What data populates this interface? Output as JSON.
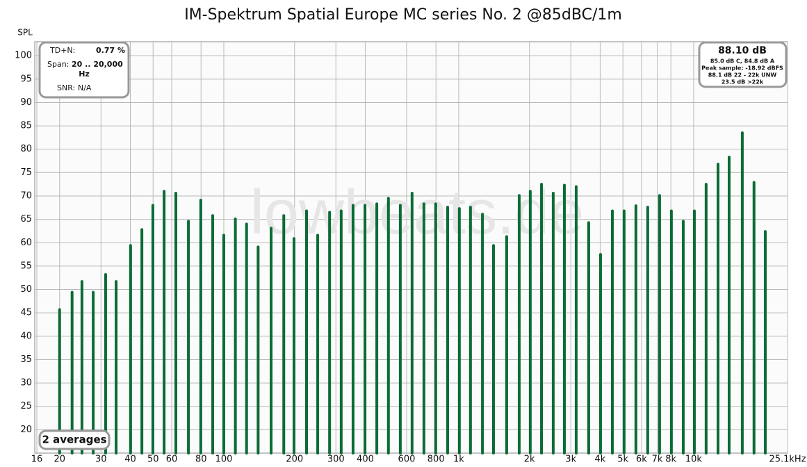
{
  "chart_data": {
    "type": "spectrum",
    "title": "IM-Spektrum Spatial Europe MC series No. 2 @85dBC/1m",
    "y_label": "SPL",
    "watermark": "lowbeats.de",
    "averages": "2 averages",
    "info_left": {
      "tdn_label": "TD+N:",
      "tdn_value": "0.77 %",
      "span_label": "Span:",
      "span_value": "20 .. 20,000",
      "span_unit": "Hz",
      "snr_label": "SNR:",
      "snr_value": "N/A"
    },
    "info_right": {
      "level": "88.10 dB",
      "lines": [
        "85.0 dB C, 84.8 dB A",
        "Peak sample: -18.92 dBFS",
        "88.1 dB 22 - 22k UNW",
        "23.5 dB >22k"
      ]
    },
    "log_x": true,
    "grid": true,
    "color": "#0b6b36",
    "xlim": [
      16,
      25100
    ],
    "ylim": [
      15,
      103
    ],
    "xticks": [
      16,
      20,
      30,
      40,
      50,
      60,
      80,
      100,
      200,
      300,
      400,
      600,
      800,
      {
        "value": 1000,
        "label": "1k"
      },
      {
        "value": 2000,
        "label": "2k"
      },
      {
        "value": 3000,
        "label": "3k"
      },
      {
        "value": 4000,
        "label": "4k"
      },
      {
        "value": 5000,
        "label": "5k"
      },
      {
        "value": 6000,
        "label": "6k"
      },
      {
        "value": 7000,
        "label": "7k"
      },
      {
        "value": 8000,
        "label": "8k"
      },
      {
        "value": 10000,
        "label": "10k"
      },
      {
        "value": 25100,
        "label": "25.1kHz"
      }
    ],
    "yticks": [
      20,
      25,
      30,
      35,
      40,
      45,
      50,
      55,
      60,
      65,
      70,
      75,
      80,
      85,
      90,
      95,
      100
    ],
    "x": [
      20,
      22.6,
      24.9,
      27.8,
      31.4,
      34.8,
      40.1,
      44.8,
      49.9,
      55.7,
      62.5,
      70.7,
      79.8,
      89.7,
      100,
      112,
      125,
      140,
      159,
      180,
      199,
      225,
      251,
      282,
      316,
      355,
      399,
      448,
      502,
      564,
      633,
      711,
      798,
      897,
      1006,
      1122,
      1262,
      1406,
      1600,
      1809,
      2016,
      2251,
      2525,
      2817,
      3162,
      3575,
      4014,
      4508,
      5058,
      5679,
      6376,
      7161,
      8039,
      9031,
      10070,
      11300,
      12700,
      14160,
      16110,
      18070,
      20180
    ],
    "values": [
      45.7,
      49.4,
      51.7,
      49.4,
      53.2,
      51.7,
      59.4,
      62.8,
      68.0,
      71.0,
      70.6,
      64.6,
      69.1,
      65.8,
      61.6,
      65.1,
      64.0,
      59.1,
      63.1,
      65.8,
      60.9,
      66.8,
      61.6,
      66.5,
      66.8,
      68.0,
      68.0,
      68.3,
      69.5,
      68.0,
      70.6,
      68.3,
      68.3,
      67.6,
      67.3,
      67.6,
      66.1,
      59.4,
      61.3,
      70.1,
      71.0,
      72.5,
      70.6,
      72.3,
      72.0,
      64.3,
      57.5,
      66.8,
      66.8,
      67.9,
      67.6,
      70.1,
      66.8,
      64.6,
      66.8,
      72.5,
      76.8,
      78.3,
      83.5,
      72.9,
      62.4
    ]
  }
}
